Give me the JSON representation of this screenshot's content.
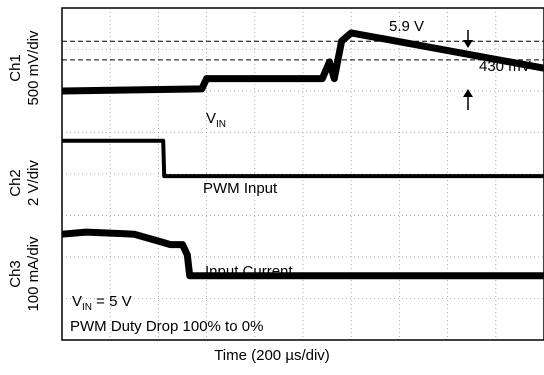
{
  "chart_data": {
    "type": "line",
    "title": "",
    "xlabel": "Time (200 µs/div)",
    "x_divisions": 10,
    "y_divisions": 8,
    "x_unit_per_div": "200 µs",
    "grid": true,
    "channels": [
      {
        "name": "Ch1",
        "scale": "500 mV/div",
        "ylabel_line1": "Ch1",
        "ylabel_line2": "500 mV/div",
        "trace_label": "V",
        "trace_label_sub": "IN",
        "x_div": [
          0,
          2.9,
          3.0,
          5.4,
          5.55,
          5.65,
          5.8,
          6.0,
          10.0
        ],
        "y_div": [
          6.0,
          6.05,
          6.3,
          6.3,
          6.7,
          6.3,
          7.2,
          7.4,
          6.55
        ]
      },
      {
        "name": "Ch2",
        "scale": "2 V/div",
        "ylabel_line1": "Ch2",
        "ylabel_line2": "2 V/div",
        "trace_label": "PWM Input",
        "x_div": [
          0,
          2.1,
          2.12,
          10.0
        ],
        "y_div": [
          4.8,
          4.8,
          3.95,
          3.95
        ]
      },
      {
        "name": "Ch3",
        "scale": "100 mA/div",
        "ylabel_line1": "Ch3",
        "ylabel_line2": "100 mA/div",
        "trace_label": "Input Current",
        "x_div": [
          0,
          0.5,
          1.5,
          2.1,
          2.25,
          2.5,
          2.6,
          2.65,
          10.0
        ],
        "y_div": [
          2.55,
          2.6,
          2.55,
          2.35,
          2.3,
          2.3,
          2.05,
          1.55,
          1.55
        ]
      }
    ],
    "cursors": [
      {
        "label": "5.9 V",
        "y_div": 7.2
      },
      {
        "label": "430 mV",
        "y_div": 6.75
      }
    ],
    "annotations": {
      "vin_prefix": "V",
      "vin_sub": "IN",
      "vin_suffix": " = 5 V",
      "duty": "PWM Duty Drop 100% to 0%"
    }
  }
}
